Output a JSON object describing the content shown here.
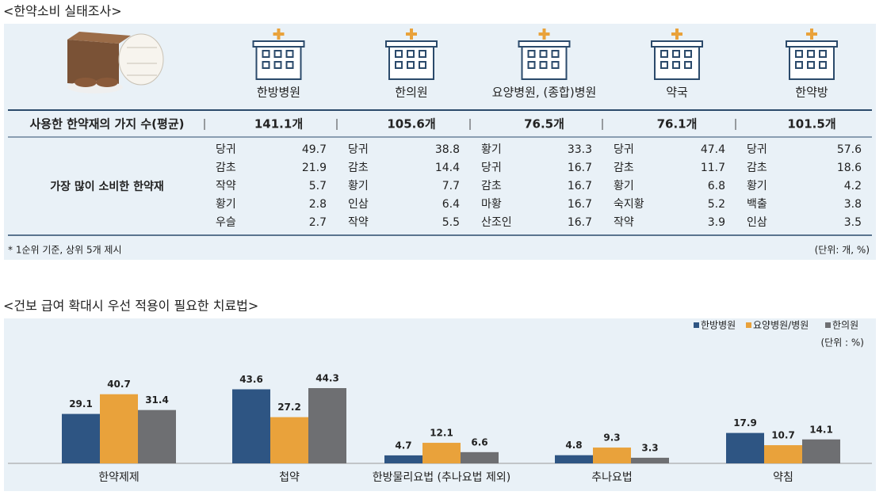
{
  "section1": {
    "title": "<한약소비 실태조사>",
    "columns": [
      "한방병원",
      "한의원",
      "요양병원, (종합)병원",
      "약국",
      "한약방"
    ],
    "avg_label": "사용한 한약재의 가지 수(평균)",
    "avg_values": [
      "141.1개",
      "105.6개",
      "76.5개",
      "76.1개",
      "101.5개"
    ],
    "top_label": "가장 많이 소비한 한약재",
    "top_items": [
      [
        {
          "name": "당귀",
          "value": 49.7
        },
        {
          "name": "감초",
          "value": 21.9
        },
        {
          "name": "작약",
          "value": 5.7
        },
        {
          "name": "황기",
          "value": 2.8
        },
        {
          "name": "우슬",
          "value": 2.7
        }
      ],
      [
        {
          "name": "당귀",
          "value": 38.8
        },
        {
          "name": "감초",
          "value": 14.4
        },
        {
          "name": "황기",
          "value": 7.7
        },
        {
          "name": "인삼",
          "value": 6.4
        },
        {
          "name": "작약",
          "value": 5.5
        }
      ],
      [
        {
          "name": "황기",
          "value": 33.3
        },
        {
          "name": "당귀",
          "value": 16.7
        },
        {
          "name": "감초",
          "value": 16.7
        },
        {
          "name": "마황",
          "value": 16.7
        },
        {
          "name": "산조인",
          "value": 16.7
        }
      ],
      [
        {
          "name": "당귀",
          "value": 47.4
        },
        {
          "name": "감초",
          "value": 11.7
        },
        {
          "name": "황기",
          "value": 6.8
        },
        {
          "name": "숙지황",
          "value": 5.2
        },
        {
          "name": "작약",
          "value": 3.9
        }
      ],
      [
        {
          "name": "당귀",
          "value": 57.6
        },
        {
          "name": "감초",
          "value": 18.6
        },
        {
          "name": "황기",
          "value": 4.2
        },
        {
          "name": "백출",
          "value": 3.8
        },
        {
          "name": "인삼",
          "value": 3.5
        }
      ]
    ],
    "footnote": "* 1순위 기준, 상위 5개 제시",
    "unit": "(단위: 개, %)"
  },
  "chart_data": {
    "type": "bar",
    "title": "<건보 급여 확대시 우선 적용이 필요한 치료법>",
    "unit_note": "(단위 : %)",
    "categories": [
      "한약제제",
      "첩약",
      "한방물리요법 (추나요법 제외)",
      "추나요법",
      "약침"
    ],
    "series": [
      {
        "name": "한방병원",
        "color": "#2e5583",
        "values": [
          29.1,
          43.6,
          4.7,
          4.8,
          17.9
        ]
      },
      {
        "name": "요양병원/병원",
        "color": "#e9a23b",
        "values": [
          40.7,
          27.2,
          12.1,
          9.3,
          10.7
        ]
      },
      {
        "name": "한의원",
        "color": "#6e6f72",
        "values": [
          31.4,
          44.3,
          6.6,
          3.3,
          14.1
        ]
      }
    ]
  }
}
